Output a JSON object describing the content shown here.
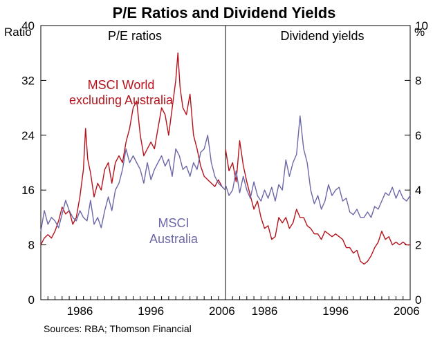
{
  "chart_data": [
    {
      "panel": "left",
      "type": "line",
      "subtitle": "P/E ratios",
      "ylabel": "Ratio",
      "ylim": [
        0,
        40
      ],
      "yticks": [
        0,
        8,
        16,
        24,
        32,
        40
      ],
      "xlim": [
        1980,
        2006
      ],
      "xticks": [
        1986,
        1996,
        2006
      ],
      "series": [
        {
          "name": "MSCI World excluding Australia",
          "label_lines": [
            "MSCI World",
            "excluding Australia"
          ],
          "color": "#b5121b",
          "x": [
            1980.0,
            1980.5,
            1981.0,
            1981.5,
            1982.0,
            1982.5,
            1983.0,
            1983.5,
            1984.0,
            1984.5,
            1985.0,
            1985.5,
            1986.0,
            1986.3,
            1986.6,
            1987.0,
            1987.5,
            1988.0,
            1988.5,
            1989.0,
            1989.5,
            1990.0,
            1990.5,
            1991.0,
            1991.5,
            1992.0,
            1992.5,
            1993.0,
            1993.5,
            1994.0,
            1994.5,
            1995.0,
            1995.5,
            1996.0,
            1996.5,
            1997.0,
            1997.5,
            1998.0,
            1998.5,
            1999.0,
            1999.3,
            1999.6,
            2000.0,
            2000.5,
            2001.0,
            2001.5,
            2002.0,
            2002.5,
            2003.0,
            2003.5,
            2004.0,
            2004.5,
            2005.0,
            2005.5,
            2006.0
          ],
          "values": [
            8.0,
            9.0,
            9.5,
            9.0,
            10.0,
            11.5,
            13.5,
            12.5,
            13.0,
            11.0,
            12.0,
            15.0,
            19.0,
            25.0,
            20.5,
            18.5,
            15.0,
            17.0,
            16.0,
            19.0,
            20.0,
            17.0,
            20.0,
            21.0,
            20.0,
            23.0,
            25.0,
            28.0,
            29.0,
            24.0,
            21.0,
            22.0,
            23.0,
            22.0,
            25.0,
            28.0,
            27.0,
            24.0,
            28.0,
            32.0,
            36.0,
            31.0,
            28.0,
            27.0,
            30.0,
            24.0,
            22.0,
            19.5,
            18.0,
            17.5,
            17.0,
            16.5,
            17.5,
            16.5,
            16.0
          ]
        },
        {
          "name": "MSCI Australia",
          "label_lines": [
            "MSCI",
            "Australia"
          ],
          "color": "#6b67a8",
          "x": [
            1980.0,
            1980.5,
            1981.0,
            1981.5,
            1982.0,
            1982.5,
            1983.0,
            1983.5,
            1984.0,
            1984.5,
            1985.0,
            1985.5,
            1986.0,
            1986.5,
            1987.0,
            1987.5,
            1988.0,
            1988.5,
            1989.0,
            1989.5,
            1990.0,
            1990.5,
            1991.0,
            1991.5,
            1992.0,
            1992.5,
            1993.0,
            1993.5,
            1994.0,
            1994.5,
            1995.0,
            1995.5,
            1996.0,
            1996.5,
            1997.0,
            1997.5,
            1998.0,
            1998.5,
            1999.0,
            1999.5,
            2000.0,
            2000.5,
            2001.0,
            2001.5,
            2002.0,
            2002.5,
            2003.0,
            2003.5,
            2004.0,
            2004.5,
            2005.0,
            2005.5,
            2006.0
          ],
          "values": [
            10.0,
            13.0,
            11.0,
            12.0,
            11.5,
            10.5,
            12.5,
            14.5,
            13.0,
            12.0,
            11.5,
            13.0,
            12.0,
            11.5,
            14.5,
            11.0,
            12.0,
            10.5,
            13.0,
            15.0,
            13.0,
            16.0,
            17.0,
            19.0,
            22.0,
            20.0,
            21.0,
            20.0,
            19.0,
            17.0,
            20.0,
            17.5,
            19.0,
            20.0,
            21.0,
            19.5,
            20.5,
            18.0,
            22.0,
            21.0,
            19.0,
            19.5,
            18.0,
            20.0,
            19.0,
            21.5,
            22.0,
            24.0,
            20.0,
            18.0,
            17.0,
            16.5,
            16.0
          ]
        }
      ]
    },
    {
      "panel": "right",
      "type": "line",
      "subtitle": "Dividend yields",
      "ylabel": "%",
      "ylim": [
        0,
        10
      ],
      "yticks": [
        0,
        2,
        4,
        6,
        8,
        10
      ],
      "xlim": [
        1980,
        2006
      ],
      "xticks": [
        1986,
        1996,
        2006
      ],
      "series": [
        {
          "name": "MSCI World excluding Australia",
          "color": "#b5121b",
          "x": [
            1980.0,
            1980.5,
            1981.0,
            1981.5,
            1982.0,
            1982.5,
            1983.0,
            1983.5,
            1984.0,
            1984.5,
            1985.0,
            1985.5,
            1986.0,
            1986.5,
            1987.0,
            1987.5,
            1988.0,
            1988.5,
            1989.0,
            1989.5,
            1990.0,
            1990.5,
            1991.0,
            1991.5,
            1992.0,
            1992.5,
            1993.0,
            1993.5,
            1994.0,
            1994.5,
            1995.0,
            1995.5,
            1996.0,
            1996.5,
            1997.0,
            1997.5,
            1998.0,
            1998.5,
            1999.0,
            1999.5,
            2000.0,
            2000.5,
            2001.0,
            2001.5,
            2002.0,
            2002.5,
            2003.0,
            2003.5,
            2004.0,
            2004.5,
            2005.0,
            2005.5,
            2006.0
          ],
          "values": [
            5.5,
            4.7,
            5.0,
            4.3,
            5.8,
            4.9,
            4.3,
            3.8,
            3.3,
            3.6,
            3.0,
            2.6,
            2.7,
            2.2,
            2.3,
            3.0,
            2.8,
            3.0,
            2.6,
            2.8,
            3.3,
            3.0,
            3.0,
            2.7,
            2.6,
            2.4,
            2.4,
            2.2,
            2.5,
            2.4,
            2.3,
            2.4,
            2.3,
            2.2,
            1.9,
            1.9,
            1.7,
            1.8,
            1.4,
            1.3,
            1.4,
            1.6,
            1.9,
            2.1,
            2.5,
            2.2,
            2.3,
            2.0,
            2.1,
            2.0,
            2.1,
            2.0,
            2.0
          ]
        },
        {
          "name": "MSCI Australia",
          "color": "#6b67a8",
          "x": [
            1980.0,
            1980.5,
            1981.0,
            1981.5,
            1982.0,
            1982.5,
            1983.0,
            1983.5,
            1984.0,
            1984.5,
            1985.0,
            1985.5,
            1986.0,
            1986.5,
            1987.0,
            1987.5,
            1988.0,
            1988.5,
            1989.0,
            1989.5,
            1990.0,
            1990.5,
            1991.0,
            1991.5,
            1992.0,
            1992.5,
            1993.0,
            1993.5,
            1994.0,
            1994.5,
            1995.0,
            1995.5,
            1996.0,
            1996.5,
            1997.0,
            1997.5,
            1998.0,
            1998.5,
            1999.0,
            1999.5,
            2000.0,
            2000.5,
            2001.0,
            2001.5,
            2002.0,
            2002.5,
            2003.0,
            2003.5,
            2004.0,
            2004.5,
            2005.0,
            2005.5,
            2006.0
          ],
          "values": [
            4.2,
            3.8,
            4.0,
            4.7,
            3.9,
            4.5,
            4.0,
            3.7,
            4.3,
            3.8,
            3.6,
            4.0,
            3.7,
            4.1,
            3.6,
            4.2,
            4.0,
            5.1,
            4.5,
            5.0,
            5.3,
            6.7,
            5.5,
            5.0,
            4.0,
            3.5,
            3.8,
            3.3,
            3.6,
            4.2,
            3.8,
            4.0,
            4.1,
            3.6,
            3.7,
            3.2,
            3.1,
            3.3,
            3.0,
            3.0,
            3.2,
            3.0,
            3.4,
            3.3,
            3.6,
            3.9,
            3.8,
            4.1,
            3.7,
            4.0,
            3.7,
            3.6,
            3.8
          ]
        }
      ]
    }
  ],
  "title": "P/E Ratios and Dividend Yields",
  "source": "Sources: RBA; Thomson Financial"
}
